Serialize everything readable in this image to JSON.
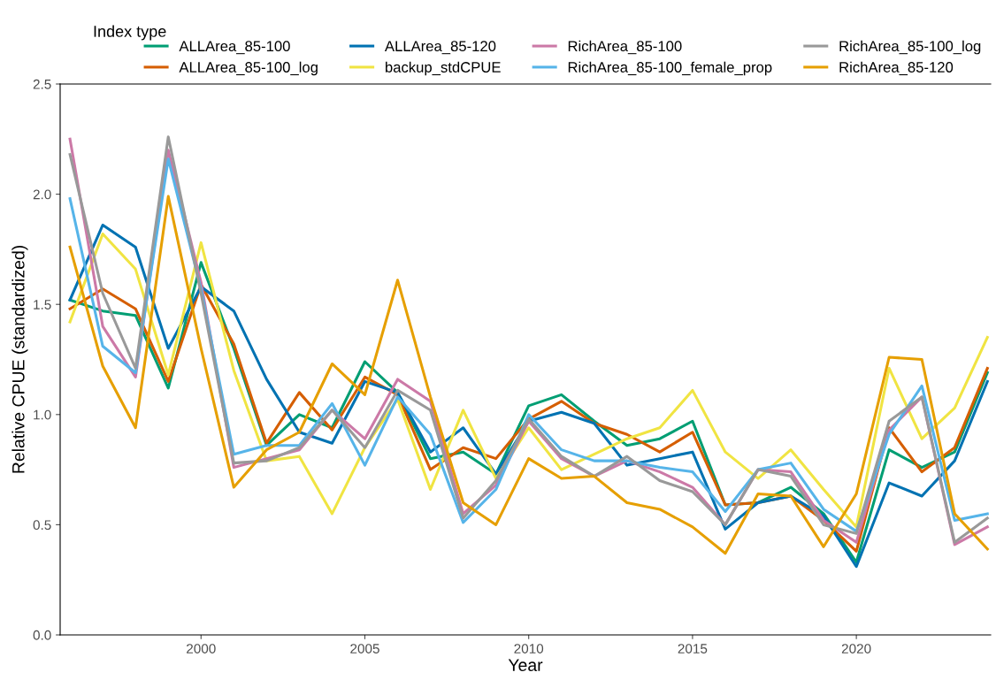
{
  "chart_data": {
    "type": "line",
    "xlabel": "Year",
    "ylabel": "Relative CPUE (standardized)",
    "legend_title": "Index type",
    "legend": "top",
    "grid": false,
    "line_style": "solid",
    "marker": "none",
    "x": [
      1996,
      1997,
      1998,
      1999,
      2000,
      2001,
      2002,
      2003,
      2004,
      2005,
      2006,
      2007,
      2008,
      2009,
      2010,
      2011,
      2012,
      2013,
      2014,
      2015,
      2016,
      2017,
      2018,
      2019,
      2020,
      2021,
      2022,
      2023,
      2024
    ],
    "xlim": [
      1995.7,
      2024.1
    ],
    "xticks": [
      2000,
      2005,
      2010,
      2015,
      2020
    ],
    "ylim": [
      0,
      2.5
    ],
    "yticks": [
      {
        "value": 0,
        "label": "0.0"
      },
      {
        "value": 0.5,
        "label": "0.5"
      },
      {
        "value": 1,
        "label": "1.0"
      },
      {
        "value": 1.5,
        "label": "1.5"
      },
      {
        "value": 2,
        "label": "2.0"
      },
      {
        "value": 2.5,
        "label": "2.5"
      }
    ],
    "series": [
      {
        "name": "ALLArea_85-100",
        "color": "#009e73",
        "values": [
          1.52,
          1.47,
          1.45,
          1.12,
          1.69,
          1.3,
          0.86,
          1.0,
          0.94,
          1.24,
          1.1,
          0.8,
          0.83,
          0.73,
          1.04,
          1.09,
          0.97,
          0.86,
          0.89,
          0.97,
          0.59,
          0.6,
          0.67,
          0.55,
          0.33,
          0.84,
          0.76,
          0.83,
          1.19
        ]
      },
      {
        "name": "ALLArea_85-100_log",
        "color": "#d55e00",
        "values": [
          1.48,
          1.57,
          1.48,
          1.15,
          1.59,
          1.32,
          0.87,
          1.1,
          0.93,
          1.17,
          1.09,
          0.75,
          0.85,
          0.8,
          0.98,
          1.06,
          0.96,
          0.91,
          0.83,
          0.92,
          0.59,
          0.6,
          0.63,
          0.52,
          0.38,
          0.94,
          0.74,
          0.85,
          1.21
        ]
      },
      {
        "name": "ALLArea_85-120",
        "color": "#0072b2",
        "values": [
          1.52,
          1.86,
          1.76,
          1.3,
          1.58,
          1.47,
          1.16,
          0.92,
          0.87,
          1.15,
          1.1,
          0.83,
          0.94,
          0.73,
          0.97,
          1.01,
          0.96,
          0.77,
          0.8,
          0.83,
          0.48,
          0.6,
          0.63,
          0.54,
          0.31,
          0.69,
          0.63,
          0.79,
          1.15
        ]
      },
      {
        "name": "backup_stdCPUE",
        "color": "#f0e442",
        "values": [
          1.42,
          1.82,
          1.66,
          1.18,
          1.78,
          1.2,
          0.79,
          0.81,
          0.55,
          0.85,
          1.07,
          0.66,
          1.02,
          0.71,
          0.94,
          0.75,
          0.82,
          0.89,
          0.94,
          1.11,
          0.83,
          0.71,
          0.84,
          0.66,
          0.49,
          1.21,
          0.89,
          1.03,
          1.35
        ]
      },
      {
        "name": "RichArea_85-100",
        "color": "#cc79a7",
        "values": [
          2.25,
          1.4,
          1.17,
          2.2,
          1.6,
          0.76,
          0.8,
          0.84,
          1.02,
          0.89,
          1.16,
          1.06,
          0.55,
          0.68,
          0.97,
          0.8,
          0.72,
          0.79,
          0.74,
          0.67,
          0.5,
          0.75,
          0.74,
          0.52,
          0.42,
          0.93,
          1.08,
          0.41,
          0.49
        ]
      },
      {
        "name": "RichArea_85-100_female_prop",
        "color": "#56b4e9",
        "values": [
          1.98,
          1.31,
          1.19,
          2.16,
          1.57,
          0.82,
          0.86,
          0.86,
          1.05,
          0.77,
          1.08,
          0.91,
          0.51,
          0.66,
          1.0,
          0.84,
          0.79,
          0.79,
          0.76,
          0.74,
          0.56,
          0.75,
          0.78,
          0.57,
          0.47,
          0.91,
          1.13,
          0.52,
          0.55
        ]
      },
      {
        "name": "RichArea_85-100_log",
        "color": "#999999",
        "values": [
          2.18,
          1.55,
          1.21,
          2.26,
          1.55,
          0.78,
          0.79,
          0.85,
          1.02,
          0.85,
          1.11,
          1.02,
          0.53,
          0.7,
          0.98,
          0.81,
          0.72,
          0.81,
          0.7,
          0.65,
          0.5,
          0.75,
          0.72,
          0.5,
          0.46,
          0.97,
          1.08,
          0.42,
          0.53
        ]
      },
      {
        "name": "RichArea_85-120",
        "color": "#e69f00",
        "values": [
          1.76,
          1.22,
          0.94,
          1.99,
          1.3,
          0.67,
          0.84,
          0.92,
          1.23,
          1.09,
          1.61,
          1.08,
          0.6,
          0.5,
          0.8,
          0.71,
          0.72,
          0.6,
          0.57,
          0.49,
          0.37,
          0.64,
          0.63,
          0.4,
          0.64,
          1.26,
          1.25,
          0.55,
          0.39
        ]
      }
    ]
  }
}
